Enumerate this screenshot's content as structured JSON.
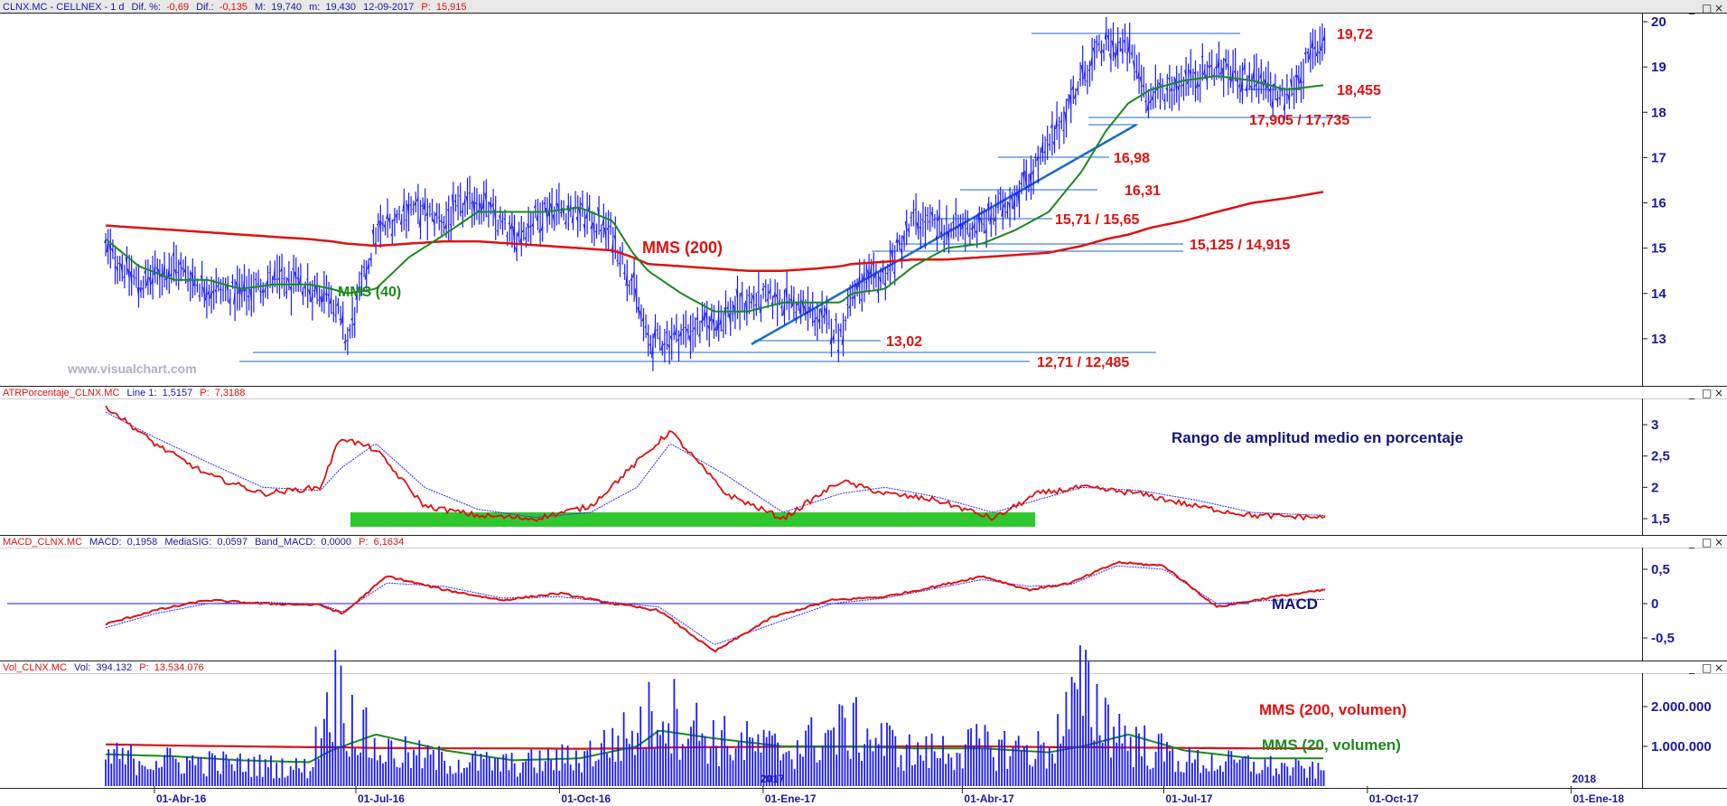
{
  "header": {
    "main": {
      "symbol": "CLNX.MC - CELLNEX - 1 d",
      "dif_pct_label": "Dif. %:",
      "dif_pct": "-0,69",
      "dif_label": "Dif.:",
      "dif": "-0,135",
      "high_label": "M:",
      "high": "19,740",
      "low_label": "m:",
      "low": "19,430",
      "date": "12-09-2017",
      "p_label": "P:",
      "p": "15,915"
    },
    "atr": {
      "name": "ATRPorcentaje_CLNX.MC",
      "line1_label": "Line 1:",
      "line1": "1,5157",
      "p_label": "P:",
      "p": "7,3188"
    },
    "macd": {
      "name": "MACD_CLNX.MC",
      "macd_label": "MACD:",
      "macd": "0,1958",
      "signal_label": "MediaSIG:",
      "signal": "0,0597",
      "band_label": "Band_MACD:",
      "band": "0,0000",
      "p_label": "P:",
      "p": "6,1634"
    },
    "vol": {
      "name": "Vol_CLNX.MC",
      "vol_label": "Vol:",
      "vol": "394.132",
      "p_label": "P:",
      "p": "13.534.076"
    }
  },
  "watermark": "www.visualchart.com",
  "colors": {
    "price_bars": "#1a1aff",
    "mms40": "#1a8a1a",
    "mms200": "#e01010",
    "levels": "#1a6acc",
    "trend": "#1a6acc",
    "label_red": "#e01010",
    "axis": "#1a1aa0",
    "atr_highlight": "#2ec82e",
    "title_bar": "#e8e8e8"
  },
  "window_controls": [
    "_",
    "□",
    "×"
  ],
  "chart_data": [
    {
      "type": "line",
      "panel": "price",
      "x": [
        "2016-03-10",
        "2016-03-25",
        "2016-04-10",
        "2016-04-25",
        "2016-05-10",
        "2016-05-25",
        "2016-06-10",
        "2016-06-20",
        "2016-06-27",
        "2016-07-10",
        "2016-07-25",
        "2016-08-10",
        "2016-08-25",
        "2016-09-10",
        "2016-09-25",
        "2016-10-10",
        "2016-10-25",
        "2016-11-03",
        "2016-11-10",
        "2016-11-25",
        "2016-12-10",
        "2016-12-25",
        "2017-01-10",
        "2017-01-25",
        "2017-02-05",
        "2017-02-10",
        "2017-02-25",
        "2017-03-10",
        "2017-03-25",
        "2017-04-10",
        "2017-04-25",
        "2017-05-10",
        "2017-05-25",
        "2017-06-05",
        "2017-06-15",
        "2017-06-25",
        "2017-07-10",
        "2017-07-25",
        "2017-08-10",
        "2017-08-25",
        "2017-09-12"
      ],
      "series": [
        {
          "values": [
            15.0,
            14.2,
            14.6,
            14.1,
            14.0,
            14.3,
            14.1,
            14.0,
            12.9,
            15.3,
            15.9,
            15.6,
            16.1,
            15.2,
            15.9,
            15.8,
            15.3,
            14.2,
            12.9,
            13.1,
            13.4,
            13.8,
            13.9,
            13.5,
            13.1,
            14.0,
            14.4,
            15.6,
            15.4,
            15.5,
            16.2,
            17.2,
            18.8,
            19.5,
            19.4,
            18.3,
            18.7,
            19.0,
            18.7,
            18.3,
            19.72
          ]
        },
        {
          "name": "MMS (40)",
          "values": [
            15.2,
            14.6,
            14.3,
            14.3,
            14.1,
            14.2,
            14.2,
            14.1,
            14.0,
            14.1,
            14.8,
            15.3,
            15.8,
            15.8,
            15.8,
            15.9,
            15.6,
            14.9,
            14.5,
            14.0,
            13.6,
            13.6,
            13.8,
            13.8,
            13.8,
            14.0,
            14.1,
            14.6,
            15.0,
            15.1,
            15.4,
            15.8,
            16.7,
            17.6,
            18.2,
            18.5,
            18.7,
            18.8,
            18.7,
            18.5,
            18.6
          ]
        },
        {
          "name": "MMS (200)",
          "values": [
            15.5,
            15.45,
            15.4,
            15.35,
            15.3,
            15.25,
            15.2,
            15.15,
            15.1,
            15.05,
            15.1,
            15.15,
            15.15,
            15.1,
            15.05,
            15.0,
            14.95,
            14.8,
            14.65,
            14.6,
            14.55,
            14.5,
            14.5,
            14.55,
            14.6,
            14.65,
            14.7,
            14.75,
            14.75,
            14.8,
            14.85,
            14.9,
            15.05,
            15.2,
            15.3,
            15.45,
            15.6,
            15.8,
            16.0,
            16.1,
            16.25
          ]
        }
      ],
      "levels": [
        "19,72",
        "18,455",
        "17,905 / 17,735",
        "16,98",
        "16,31",
        "15,71 / 15,65",
        "15,125 / 14,915",
        "13,02",
        "12,71 / 12,485"
      ],
      "annotations": [
        "MMS (200)",
        "MMS (40)"
      ],
      "ylim": [
        12,
        20
      ],
      "yticks": [
        "13",
        "14",
        "15",
        "16",
        "17",
        "18",
        "19",
        "20"
      ],
      "xticks": [
        "01-Abr-16",
        "01-Jul-16",
        "01-Oct-16",
        "01-Ene-17",
        "01-Abr-17",
        "01-Jul-17",
        "01-Oct-17",
        "01-Ene-18"
      ],
      "year_marks": [
        "2017",
        "2018"
      ]
    },
    {
      "type": "line",
      "panel": "atr",
      "x": [
        "2016-03-10",
        "2016-04-01",
        "2016-04-25",
        "2016-05-20",
        "2016-06-15",
        "2016-06-24",
        "2016-07-10",
        "2016-08-01",
        "2016-08-25",
        "2016-09-20",
        "2016-10-15",
        "2016-11-05",
        "2016-11-20",
        "2016-12-15",
        "2017-01-10",
        "2017-02-05",
        "2017-02-25",
        "2017-03-20",
        "2017-04-15",
        "2017-05-05",
        "2017-05-25",
        "2017-06-20",
        "2017-07-15",
        "2017-08-10",
        "2017-09-12"
      ],
      "series": [
        {
          "values": [
            3.3,
            2.7,
            2.2,
            1.9,
            2.0,
            2.8,
            2.6,
            1.7,
            1.55,
            1.5,
            1.7,
            2.4,
            2.9,
            1.9,
            1.5,
            2.1,
            1.9,
            1.8,
            1.5,
            1.9,
            2.0,
            1.9,
            1.7,
            1.55,
            1.52
          ]
        },
        {
          "values": [
            3.2,
            2.8,
            2.4,
            2.0,
            1.95,
            2.3,
            2.7,
            2.0,
            1.65,
            1.52,
            1.6,
            2.0,
            2.7,
            2.2,
            1.6,
            1.9,
            2.0,
            1.85,
            1.6,
            1.8,
            2.0,
            1.95,
            1.8,
            1.6,
            1.55
          ]
        }
      ],
      "annotation": "Rango de amplitud medio en porcentaje",
      "ylim": [
        1.2,
        3.5
      ],
      "yticks": [
        "1,5",
        "2",
        "2,5",
        "3"
      ]
    },
    {
      "type": "line",
      "panel": "macd",
      "x": [
        "2016-03-10",
        "2016-04-01",
        "2016-04-25",
        "2016-05-20",
        "2016-06-15",
        "2016-06-25",
        "2016-07-15",
        "2016-08-10",
        "2016-09-05",
        "2016-10-01",
        "2016-10-25",
        "2016-11-15",
        "2016-12-10",
        "2017-01-05",
        "2017-02-01",
        "2017-02-25",
        "2017-03-20",
        "2017-04-10",
        "2017-05-01",
        "2017-05-20",
        "2017-06-10",
        "2017-07-01",
        "2017-07-25",
        "2017-08-20",
        "2017-09-12"
      ],
      "series": [
        {
          "values": [
            -0.3,
            -0.1,
            0.05,
            0.0,
            -0.02,
            -0.15,
            0.4,
            0.2,
            0.05,
            0.15,
            0.0,
            -0.1,
            -0.7,
            -0.2,
            0.05,
            0.1,
            0.25,
            0.4,
            0.2,
            0.3,
            0.6,
            0.55,
            -0.05,
            0.1,
            0.2
          ]
        },
        {
          "values": [
            -0.35,
            -0.15,
            0.0,
            0.02,
            -0.01,
            -0.12,
            0.3,
            0.25,
            0.08,
            0.1,
            0.02,
            -0.05,
            -0.6,
            -0.3,
            0.0,
            0.08,
            0.22,
            0.35,
            0.25,
            0.28,
            0.55,
            0.5,
            0.0,
            0.05,
            0.06
          ]
        }
      ],
      "annotation": "MACD",
      "ylim": [
        -0.85,
        0.9
      ],
      "yticks": [
        "0,5",
        "0",
        "-0,5"
      ]
    },
    {
      "type": "bar",
      "panel": "volume",
      "x": [
        "2016-03-10",
        "2016-04-10",
        "2016-05-10",
        "2016-06-10",
        "2016-06-20",
        "2016-07-10",
        "2016-08-10",
        "2016-09-10",
        "2016-10-10",
        "2016-11-05",
        "2016-11-15",
        "2016-12-10",
        "2017-01-10",
        "2017-02-10",
        "2017-03-10",
        "2017-04-10",
        "2017-05-10",
        "2017-05-25",
        "2017-06-15",
        "2017-07-10",
        "2017-08-10",
        "2017-09-12"
      ],
      "values": [
        800000,
        700000,
        600000,
        500000,
        2700000,
        1000000,
        700000,
        600000,
        800000,
        1500000,
        2200000,
        1300000,
        1000000,
        1600000,
        900000,
        1100000,
        1000000,
        2600000,
        1300000,
        700000,
        600000,
        394132
      ],
      "series": [
        {
          "name": "MMS (200, volumen)",
          "values": [
            1050000,
            1020000,
            1000000,
            980000,
            980000,
            960000,
            950000,
            950000,
            940000,
            950000,
            970000,
            980000,
            990000,
            990000,
            1000000,
            1000000,
            980000,
            980000,
            970000,
            960000,
            950000,
            950000
          ]
        },
        {
          "name": "MMS (20, volumen)",
          "values": [
            800000,
            750000,
            650000,
            600000,
            900000,
            1300000,
            900000,
            650000,
            700000,
            1000000,
            1400000,
            1200000,
            1000000,
            1000000,
            950000,
            950000,
            850000,
            1000000,
            1300000,
            900000,
            700000,
            700000
          ]
        }
      ],
      "ylim": [
        0,
        2800000
      ],
      "yticks": [
        "1.000.000",
        "2.000.000"
      ]
    }
  ]
}
